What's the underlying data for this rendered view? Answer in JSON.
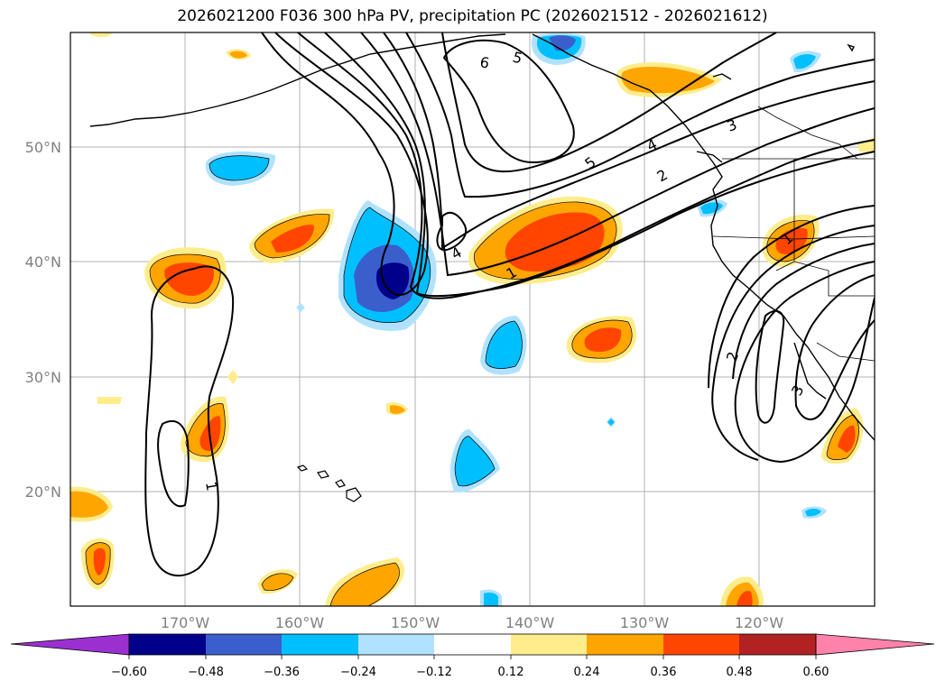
{
  "title": "2026021200 F036 300 hPa PV, precipitation PC (2026021512 - 2026021612)",
  "lat_labels": [
    "50°N",
    "40°N",
    "30°N",
    "20°N"
  ],
  "lon_labels": [
    "170°W",
    "160°W",
    "150°W",
    "140°W",
    "130°W",
    "120°W"
  ],
  "contour_labels": [
    "6",
    "5",
    "5",
    "4",
    "3",
    "2",
    "1",
    "4",
    "1",
    "1",
    "2",
    "3"
  ],
  "colorbar": {
    "ticks": [
      "−0.60",
      "−0.48",
      "−0.36",
      "−0.24",
      "−0.12",
      "0.12",
      "0.24",
      "0.36",
      "0.48",
      "0.60"
    ],
    "colors": [
      "#9b30d0",
      "#00008b",
      "#3a5fcd",
      "#00bfff",
      "#b0e2ff",
      "#ffffff",
      "#ffec8b",
      "#ffa500",
      "#ff4500",
      "#b22222",
      "#ff82ab"
    ]
  },
  "colors": {
    "grid": "#b0b0b0",
    "coast": "#000000",
    "pv_contour": "#000000"
  }
}
